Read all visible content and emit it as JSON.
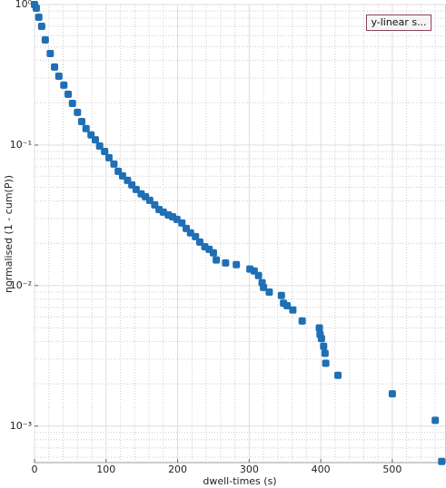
{
  "chart_data": {
    "type": "scatter",
    "xlabel": "dwell-times (s)",
    "ylabel": "normalised (1 - cum(P))",
    "color": "#1f6fb5",
    "log_y": true,
    "grid": true,
    "xlim": [
      0,
      575
    ],
    "xticks": [
      0,
      100,
      200,
      300,
      400,
      500
    ],
    "xminorticks": [
      20,
      40,
      60,
      80,
      120,
      140,
      160,
      180,
      220,
      240,
      260,
      280,
      320,
      340,
      360,
      380,
      420,
      440,
      460,
      480,
      520,
      540,
      560
    ],
    "ylim": [
      0.00055,
      1
    ],
    "yticks": [
      {
        "value": 0.001,
        "label": "10⁻³"
      },
      {
        "value": 0.01,
        "label": "10⁻²"
      },
      {
        "value": 0.1,
        "label": "10⁻¹"
      },
      {
        "value": 1,
        "label": "10⁰"
      }
    ],
    "yminorticks": [
      0.0006,
      0.0007,
      0.0008,
      0.0009,
      0.002,
      0.003,
      0.004,
      0.005,
      0.006,
      0.007,
      0.008,
      0.009,
      0.02,
      0.03,
      0.04,
      0.05,
      0.06,
      0.07,
      0.08,
      0.09,
      0.2,
      0.3,
      0.4,
      0.5,
      0.6,
      0.7,
      0.8,
      0.9
    ],
    "x": [
      0,
      2.5,
      6,
      10,
      15,
      22,
      28,
      34,
      41,
      47,
      53,
      60,
      66,
      72,
      79,
      85,
      91,
      98,
      104,
      111,
      117,
      123,
      130,
      136,
      142,
      149,
      155,
      161,
      168,
      174,
      180,
      187,
      193,
      199,
      206,
      212,
      218,
      225,
      231,
      238,
      244,
      250,
      254,
      267,
      282,
      301,
      307,
      313,
      318,
      320,
      328,
      345,
      348,
      353,
      361,
      374,
      398,
      399,
      401,
      404,
      406,
      407,
      424,
      500,
      560,
      569
    ],
    "values": [
      1,
      0.942,
      0.812,
      0.7,
      0.56,
      0.448,
      0.359,
      0.309,
      0.267,
      0.23,
      0.198,
      0.171,
      0.147,
      0.131,
      0.118,
      0.109,
      0.0985,
      0.0901,
      0.0813,
      0.0732,
      0.065,
      0.0604,
      0.056,
      0.052,
      0.0483,
      0.0449,
      0.0429,
      0.0404,
      0.0375,
      0.0348,
      0.0333,
      0.0318,
      0.0309,
      0.0296,
      0.0279,
      0.0255,
      0.0237,
      0.0223,
      0.0204,
      0.0189,
      0.0181,
      0.0171,
      0.0152,
      0.0145,
      0.0141,
      0.0131,
      0.0127,
      0.0118,
      0.0105,
      0.0097,
      0.009,
      0.0085,
      0.0075,
      0.0072,
      0.0067,
      0.0056,
      0.005,
      0.0045,
      0.0042,
      0.0037,
      0.0033,
      0.0028,
      0.0023,
      0.0017,
      0.0011,
      0.00056
    ]
  },
  "button": {
    "label": "y-linear s..."
  }
}
